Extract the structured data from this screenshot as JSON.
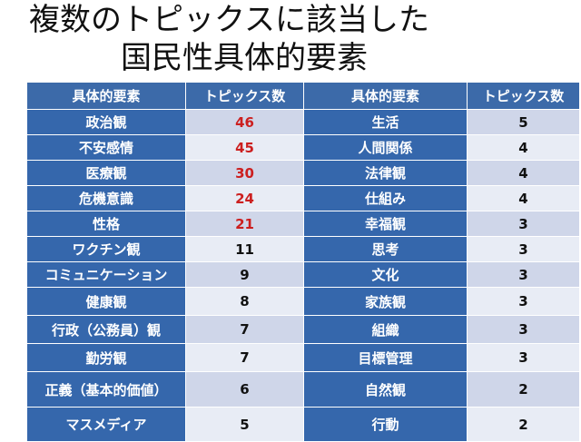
{
  "slide": {
    "title_line1": "複数のトピックスに該当した",
    "title_line2": "国民性具体的要素"
  },
  "table": {
    "headers": [
      "具体的要素",
      "トピックス数",
      "具体的要素",
      "トピックス数"
    ],
    "highlight_color": "#cc1f1f",
    "rows": [
      {
        "left_element": "政治観",
        "left_count": "46",
        "left_highlight": true,
        "right_element": "生活",
        "right_count": "5"
      },
      {
        "left_element": "不安感情",
        "left_count": "45",
        "left_highlight": true,
        "right_element": "人間関係",
        "right_count": "4"
      },
      {
        "left_element": "医療観",
        "left_count": "30",
        "left_highlight": true,
        "right_element": "法律観",
        "right_count": "4"
      },
      {
        "left_element": "危機意識",
        "left_count": "24",
        "left_highlight": true,
        "right_element": "仕組み",
        "right_count": "4"
      },
      {
        "left_element": "性格",
        "left_count": "21",
        "left_highlight": true,
        "right_element": "幸福観",
        "right_count": "3"
      },
      {
        "left_element": "ワクチン観",
        "left_count": "11",
        "left_highlight": false,
        "right_element": "思考",
        "right_count": "3"
      },
      {
        "left_element": "コミュニケーション",
        "left_count": "9",
        "left_highlight": false,
        "right_element": "文化",
        "right_count": "3"
      },
      {
        "left_element": "健康観",
        "left_count": "8",
        "left_highlight": false,
        "right_element": "家族観",
        "right_count": "3"
      },
      {
        "left_element": "行政（公務員）観",
        "left_count": "7",
        "left_highlight": false,
        "right_element": "組織",
        "right_count": "3"
      },
      {
        "left_element": "勤労観",
        "left_count": "7",
        "left_highlight": false,
        "right_element": "目標管理",
        "right_count": "3"
      },
      {
        "left_element": "正義（基本的価値）",
        "left_count": "6",
        "left_highlight": false,
        "right_element": "自然観",
        "right_count": "2"
      },
      {
        "left_element": "マスメディア",
        "left_count": "5",
        "left_highlight": false,
        "right_element": "行動",
        "right_count": "2"
      }
    ]
  }
}
